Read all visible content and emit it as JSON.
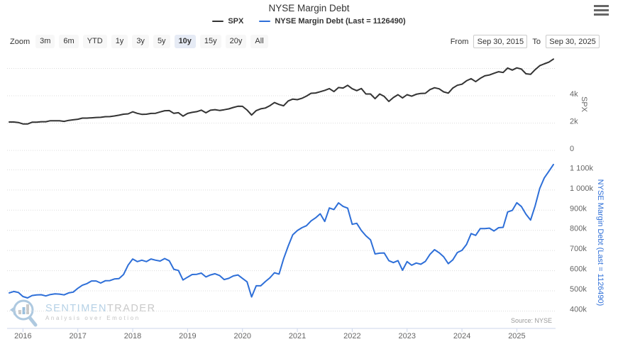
{
  "header": {
    "title": "NYSE Margin Debt"
  },
  "legend": {
    "items": [
      {
        "label": "SPX",
        "color": "#333333"
      },
      {
        "label": "NYSE Margin Debt (Last = 1126490)",
        "color": "#2e6fd8"
      }
    ]
  },
  "icons": {
    "context_menu": "hamburger-menu"
  },
  "toolbar": {
    "zoom_label": "Zoom",
    "buttons": [
      {
        "label": "3m"
      },
      {
        "label": "6m"
      },
      {
        "label": "YTD"
      },
      {
        "label": "1y"
      },
      {
        "label": "3y"
      },
      {
        "label": "5y"
      },
      {
        "label": "10y"
      },
      {
        "label": "15y"
      },
      {
        "label": "20y"
      },
      {
        "label": "All"
      }
    ],
    "selected": "10y"
  },
  "range": {
    "from_label": "From",
    "from_value": "Sep 30, 2015",
    "to_label": "To",
    "to_value": "Sep 30, 2025"
  },
  "watermark": {
    "brand_primary": "SENTIMEN",
    "brand_secondary": "TRADER",
    "tagline": "Analysis over Emotion"
  },
  "footer": {
    "source": "Source: NYSE"
  },
  "chart_data": {
    "type": "line",
    "title": "NYSE Margin Debt",
    "x_unit": "month",
    "x_start": "2015-10",
    "x_end": "2025-09",
    "x_tick_labels": [
      "2016",
      "2017",
      "2018",
      "2019",
      "2020",
      "2021",
      "2022",
      "2023",
      "2024",
      "2025"
    ],
    "grid": "horizontal-dotted",
    "legend_position": "top",
    "source": "Source: NYSE",
    "axes": {
      "spx": {
        "title": "SPX",
        "side": "right",
        "range": [
          0,
          6600
        ],
        "ticks": [
          {
            "value": 0,
            "label": "0"
          },
          {
            "value": 2000,
            "label": "2k"
          },
          {
            "value": 4000,
            "label": "4k"
          },
          {
            "value": 6000,
            "label": ""
          }
        ]
      },
      "margin": {
        "title": "NYSE Margin Debt (Last = 1126490)",
        "side": "right",
        "range": [
          400000,
          1150000
        ],
        "ticks": [
          {
            "value": 400000,
            "label": "400k"
          },
          {
            "value": 500000,
            "label": "500k"
          },
          {
            "value": 600000,
            "label": "600k"
          },
          {
            "value": 700000,
            "label": "700k"
          },
          {
            "value": 800000,
            "label": "800k"
          },
          {
            "value": 900000,
            "label": "900k"
          },
          {
            "value": 1000000,
            "label": "1 000k"
          },
          {
            "value": 1100000,
            "label": "1 100k"
          }
        ]
      }
    },
    "series": [
      {
        "name": "SPX",
        "axis": "spx",
        "color": "#333333",
        "values": [
          2079,
          2080,
          2044,
          1940,
          1932,
          2060,
          2065,
          2097,
          2099,
          2174,
          2171,
          2168,
          2126,
          2199,
          2239,
          2279,
          2364,
          2363,
          2384,
          2412,
          2423,
          2470,
          2472,
          2519,
          2575,
          2648,
          2674,
          2824,
          2714,
          2641,
          2648,
          2705,
          2718,
          2816,
          2902,
          2914,
          2712,
          2760,
          2507,
          2704,
          2784,
          2834,
          2946,
          2752,
          2942,
          2980,
          2926,
          2977,
          3038,
          3141,
          3231,
          3226,
          2954,
          2585,
          2912,
          3044,
          3100,
          3271,
          3500,
          3363,
          3270,
          3622,
          3756,
          3714,
          3811,
          3973,
          4181,
          4204,
          4298,
          4395,
          4523,
          4308,
          4605,
          4567,
          4766,
          4516,
          4374,
          4530,
          4132,
          4132,
          3785,
          4130,
          3955,
          3586,
          3872,
          4080,
          3840,
          4077,
          3970,
          4109,
          4169,
          4180,
          4450,
          4589,
          4508,
          4288,
          4194,
          4568,
          4770,
          4846,
          5096,
          5254,
          5036,
          5277,
          5460,
          5522,
          5648,
          5762,
          5705,
          6032,
          5882,
          6041,
          5955,
          5612,
          5569,
          5912,
          6205,
          6340,
          6460,
          6688
        ]
      },
      {
        "name": "NYSE Margin Debt (Last = 1126490)",
        "axis": "margin",
        "color": "#2e6fd8",
        "last": 1126490,
        "values": [
          490000,
          497000,
          492000,
          472000,
          465000,
          477000,
          480000,
          481000,
          475000,
          482000,
          485000,
          484000,
          480000,
          490000,
          494000,
          513000,
          528000,
          536000,
          549000,
          549000,
          539000,
          550000,
          551000,
          559000,
          561000,
          581000,
          628000,
          658000,
          645000,
          652000,
          645000,
          658000,
          652000,
          648000,
          660000,
          649000,
          607000,
          601000,
          554000,
          568000,
          581000,
          582000,
          588000,
          569000,
          579000,
          585000,
          576000,
          556000,
          562000,
          574000,
          579000,
          562000,
          545000,
          470000,
          525000,
          525000,
          546000,
          565000,
          590000,
          583000,
          659000,
          722000,
          778000,
          799000,
          813000,
          823000,
          847000,
          862000,
          882000,
          844000,
          911000,
          903000,
          936000,
          919000,
          910000,
          830000,
          835000,
          799000,
          773000,
          753000,
          683000,
          687000,
          688000,
          650000,
          640000,
          650000,
          602000,
          645000,
          627000,
          638000,
          632000,
          646000,
          681000,
          704000,
          689000,
          669000,
          635000,
          654000,
          690000,
          701000,
          730000,
          784000,
          775000,
          809000,
          809000,
          811000,
          797000,
          813000,
          815000,
          891000,
          899000,
          937000,
          918000,
          880000,
          851000,
          921000,
          1008000,
          1060000,
          1093000,
          1126490
        ]
      }
    ]
  }
}
